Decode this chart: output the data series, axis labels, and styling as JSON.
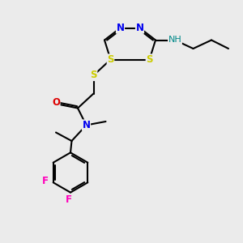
{
  "bg": "#ebebeb",
  "bc": "#000000",
  "N_col": "#0000EE",
  "S_col": "#CCCC00",
  "O_col": "#DD0000",
  "F_col": "#FF00BB",
  "NH_col": "#008888",
  "fig_w": 3.0,
  "fig_h": 3.0,
  "dpi": 100,
  "xlim": [
    0,
    10
  ],
  "ylim": [
    0,
    10
  ]
}
